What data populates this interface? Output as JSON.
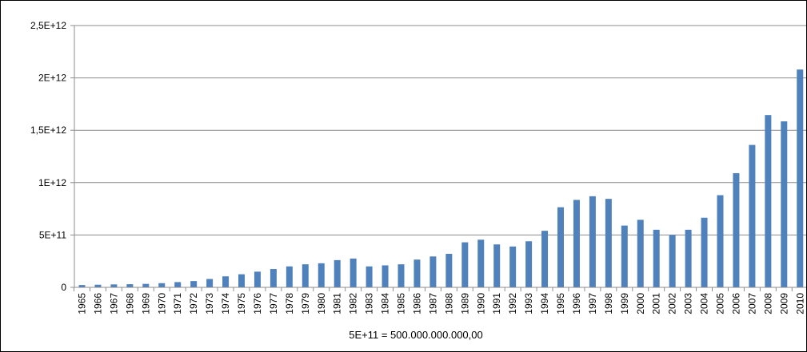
{
  "chart_data": {
    "type": "bar",
    "title": "",
    "xlabel": "",
    "ylabel": "",
    "footnote": "5E+11 = 500.000.000.000,00",
    "ylim": [
      0,
      2500000000000
    ],
    "ytick_values": [
      0,
      500000000000,
      1000000000000,
      1500000000000,
      2000000000000,
      2500000000000
    ],
    "ytick_labels": [
      "0",
      "5E+11",
      "1E+12",
      "1,5E+12",
      "2E+12",
      "2,5E+12"
    ],
    "grid": true,
    "legend": "none",
    "bar_color": "#4f81bd",
    "categories": [
      "1965",
      "1966",
      "1967",
      "1968",
      "1969",
      "1970",
      "1971",
      "1972",
      "1973",
      "1974",
      "1975",
      "1976",
      "1977",
      "1978",
      "1979",
      "1980",
      "1981",
      "1982",
      "1983",
      "1984",
      "1985",
      "1986",
      "1987",
      "1988",
      "1989",
      "1990",
      "1991",
      "1992",
      "1993",
      "1994",
      "1995",
      "1996",
      "1997",
      "1998",
      "1999",
      "2000",
      "2001",
      "2002",
      "2003",
      "2004",
      "2005",
      "2006",
      "2007",
      "2008",
      "2009",
      "2010"
    ],
    "values": [
      22000000000,
      25000000000,
      28000000000,
      30000000000,
      33000000000,
      40000000000,
      50000000000,
      60000000000,
      80000000000,
      105000000000,
      125000000000,
      150000000000,
      175000000000,
      200000000000,
      220000000000,
      230000000000,
      260000000000,
      275000000000,
      200000000000,
      210000000000,
      220000000000,
      265000000000,
      295000000000,
      320000000000,
      430000000000,
      455000000000,
      410000000000,
      390000000000,
      440000000000,
      540000000000,
      765000000000,
      835000000000,
      870000000000,
      845000000000,
      590000000000,
      645000000000,
      550000000000,
      500000000000,
      550000000000,
      665000000000,
      880000000000,
      1090000000000,
      1360000000000,
      1645000000000,
      1585000000000,
      2080000000000
    ]
  }
}
